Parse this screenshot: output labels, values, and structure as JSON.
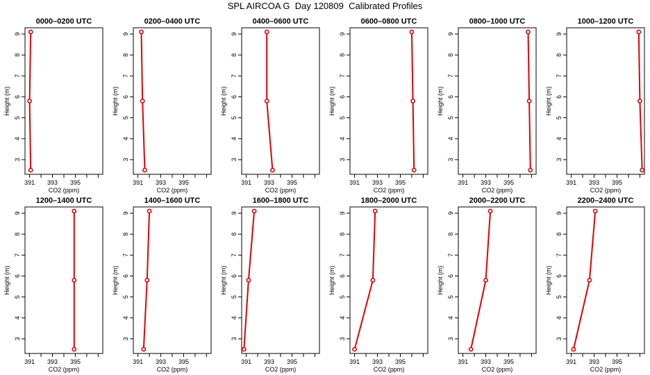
{
  "title": "SPL AIRCOA G  Day 120809  Calibrated Profiles",
  "colors": {
    "series": "#e00000",
    "axis": "#000000",
    "background": "#ffffff"
  },
  "chart_data": [
    {
      "type": "line",
      "title": "0000–0200 UTC",
      "xlabel": "CO2 (ppm)",
      "ylabel": "Height (m)",
      "xlim": [
        390.6,
        397.4
      ],
      "ylim": [
        2.3,
        9.3
      ],
      "xticks": [
        391,
        392,
        393,
        394,
        395,
        396,
        397
      ],
      "xticklabels": [
        "391",
        "393",
        "395"
      ],
      "yticks": [
        3,
        4,
        5,
        6,
        7,
        8,
        9
      ],
      "grid": false,
      "series": [
        {
          "x": [
            391.1,
            391.0,
            391.1
          ],
          "y": [
            2.5,
            5.8,
            9.1
          ]
        }
      ]
    },
    {
      "type": "line",
      "title": "0200–0400 UTC",
      "xlabel": "CO2 (ppm)",
      "ylabel": "Height (m)",
      "xlim": [
        390.6,
        397.4
      ],
      "ylim": [
        2.3,
        9.3
      ],
      "xticks": [
        391,
        392,
        393,
        394,
        395,
        396,
        397
      ],
      "xticklabels": [
        "391",
        "393",
        "395"
      ],
      "yticks": [
        3,
        4,
        5,
        6,
        7,
        8,
        9
      ],
      "grid": false,
      "series": [
        {
          "x": [
            391.6,
            391.4,
            391.3
          ],
          "y": [
            2.5,
            5.8,
            9.1
          ]
        }
      ]
    },
    {
      "type": "line",
      "title": "0400–0600 UTC",
      "xlabel": "CO2 (ppm)",
      "ylabel": "Height (m)",
      "xlim": [
        390.6,
        397.4
      ],
      "ylim": [
        2.3,
        9.3
      ],
      "xticks": [
        391,
        392,
        393,
        394,
        395,
        396,
        397
      ],
      "xticklabels": [
        "391",
        "393",
        "395"
      ],
      "yticks": [
        3,
        4,
        5,
        6,
        7,
        8,
        9
      ],
      "grid": false,
      "series": [
        {
          "x": [
            393.3,
            392.8,
            392.8
          ],
          "y": [
            2.5,
            5.8,
            9.1
          ]
        }
      ]
    },
    {
      "type": "line",
      "title": "0600–0800 UTC",
      "xlabel": "CO2 (ppm)",
      "ylabel": "Height (m)",
      "xlim": [
        390.6,
        397.4
      ],
      "ylim": [
        2.3,
        9.3
      ],
      "xticks": [
        391,
        392,
        393,
        394,
        395,
        396,
        397
      ],
      "xticklabels": [
        "391",
        "393",
        "395"
      ],
      "yticks": [
        3,
        4,
        5,
        6,
        7,
        8,
        9
      ],
      "grid": false,
      "series": [
        {
          "x": [
            396.2,
            396.1,
            396.0
          ],
          "y": [
            2.5,
            5.8,
            9.1
          ]
        }
      ]
    },
    {
      "type": "line",
      "title": "0800–1000 UTC",
      "xlabel": "CO2 (ppm)",
      "ylabel": "Height (m)",
      "xlim": [
        390.6,
        397.4
      ],
      "ylim": [
        2.3,
        9.3
      ],
      "xticks": [
        391,
        392,
        393,
        394,
        395,
        396,
        397
      ],
      "xticklabels": [
        "391",
        "393",
        "395"
      ],
      "yticks": [
        3,
        4,
        5,
        6,
        7,
        8,
        9
      ],
      "grid": false,
      "series": [
        {
          "x": [
            396.9,
            396.8,
            396.7
          ],
          "y": [
            2.5,
            5.8,
            9.1
          ]
        }
      ]
    },
    {
      "type": "line",
      "title": "1000–1200 UTC",
      "xlabel": "CO2 (ppm)",
      "ylabel": "Height (m)",
      "xlim": [
        390.6,
        397.4
      ],
      "ylim": [
        2.3,
        9.3
      ],
      "xticks": [
        391,
        392,
        393,
        394,
        395,
        396,
        397
      ],
      "xticklabels": [
        "391",
        "393",
        "395"
      ],
      "yticks": [
        3,
        4,
        5,
        6,
        7,
        8,
        9
      ],
      "grid": false,
      "series": [
        {
          "x": [
            397.2,
            397.0,
            396.9
          ],
          "y": [
            2.5,
            5.8,
            9.1
          ]
        }
      ]
    },
    {
      "type": "line",
      "title": "1200–1400 UTC",
      "xlabel": "CO2 (ppm)",
      "ylabel": "Height (m)",
      "xlim": [
        390.6,
        397.4
      ],
      "ylim": [
        2.3,
        9.3
      ],
      "xticks": [
        391,
        392,
        393,
        394,
        395,
        396,
        397
      ],
      "xticklabels": [
        "391",
        "393",
        "395"
      ],
      "yticks": [
        3,
        4,
        5,
        6,
        7,
        8,
        9
      ],
      "grid": false,
      "series": [
        {
          "x": [
            394.9,
            394.9,
            394.9
          ],
          "y": [
            2.5,
            5.8,
            9.1
          ]
        }
      ]
    },
    {
      "type": "line",
      "title": "1400–1600 UTC",
      "xlabel": "CO2 (ppm)",
      "ylabel": "Height (m)",
      "xlim": [
        390.6,
        397.4
      ],
      "ylim": [
        2.3,
        9.3
      ],
      "xticks": [
        391,
        392,
        393,
        394,
        395,
        396,
        397
      ],
      "xticklabels": [
        "391",
        "393",
        "395"
      ],
      "yticks": [
        3,
        4,
        5,
        6,
        7,
        8,
        9
      ],
      "grid": false,
      "series": [
        {
          "x": [
            391.5,
            391.8,
            392.0
          ],
          "y": [
            2.5,
            5.8,
            9.1
          ]
        }
      ]
    },
    {
      "type": "line",
      "title": "1600–1800 UTC",
      "xlabel": "CO2 (ppm)",
      "ylabel": "Height (m)",
      "xlim": [
        390.6,
        397.4
      ],
      "ylim": [
        2.3,
        9.3
      ],
      "xticks": [
        391,
        392,
        393,
        394,
        395,
        396,
        397
      ],
      "xticklabels": [
        "391",
        "393",
        "395"
      ],
      "yticks": [
        3,
        4,
        5,
        6,
        7,
        8,
        9
      ],
      "grid": false,
      "series": [
        {
          "x": [
            390.8,
            391.2,
            391.7
          ],
          "y": [
            2.5,
            5.8,
            9.1
          ]
        }
      ]
    },
    {
      "type": "line",
      "title": "1800–2000 UTC",
      "xlabel": "CO2 (ppm)",
      "ylabel": "Height (m)",
      "xlim": [
        390.6,
        397.4
      ],
      "ylim": [
        2.3,
        9.3
      ],
      "xticks": [
        391,
        392,
        393,
        394,
        395,
        396,
        397
      ],
      "xticklabels": [
        "391",
        "393",
        "395"
      ],
      "yticks": [
        3,
        4,
        5,
        6,
        7,
        8,
        9
      ],
      "grid": false,
      "series": [
        {
          "x": [
            391.0,
            392.6,
            392.8
          ],
          "y": [
            2.5,
            5.8,
            9.1
          ]
        }
      ]
    },
    {
      "type": "line",
      "title": "2000–2200 UTC",
      "xlabel": "CO2 (ppm)",
      "ylabel": "Height (m)",
      "xlim": [
        390.6,
        397.4
      ],
      "ylim": [
        2.3,
        9.3
      ],
      "xticks": [
        391,
        392,
        393,
        394,
        395,
        396,
        397
      ],
      "xticklabels": [
        "391",
        "393",
        "395"
      ],
      "yticks": [
        3,
        4,
        5,
        6,
        7,
        8,
        9
      ],
      "grid": false,
      "series": [
        {
          "x": [
            391.7,
            393.0,
            393.4
          ],
          "y": [
            2.5,
            5.8,
            9.1
          ]
        }
      ]
    },
    {
      "type": "line",
      "title": "2200–2400 UTC",
      "xlabel": "CO2 (ppm)",
      "ylabel": "Height (m)",
      "xlim": [
        390.6,
        397.4
      ],
      "ylim": [
        2.3,
        9.3
      ],
      "xticks": [
        391,
        392,
        393,
        394,
        395,
        396,
        397
      ],
      "xticklabels": [
        "391",
        "393",
        "395"
      ],
      "yticks": [
        3,
        4,
        5,
        6,
        7,
        8,
        9
      ],
      "grid": false,
      "series": [
        {
          "x": [
            391.2,
            392.6,
            393.1
          ],
          "y": [
            2.5,
            5.8,
            9.1
          ]
        }
      ]
    }
  ]
}
